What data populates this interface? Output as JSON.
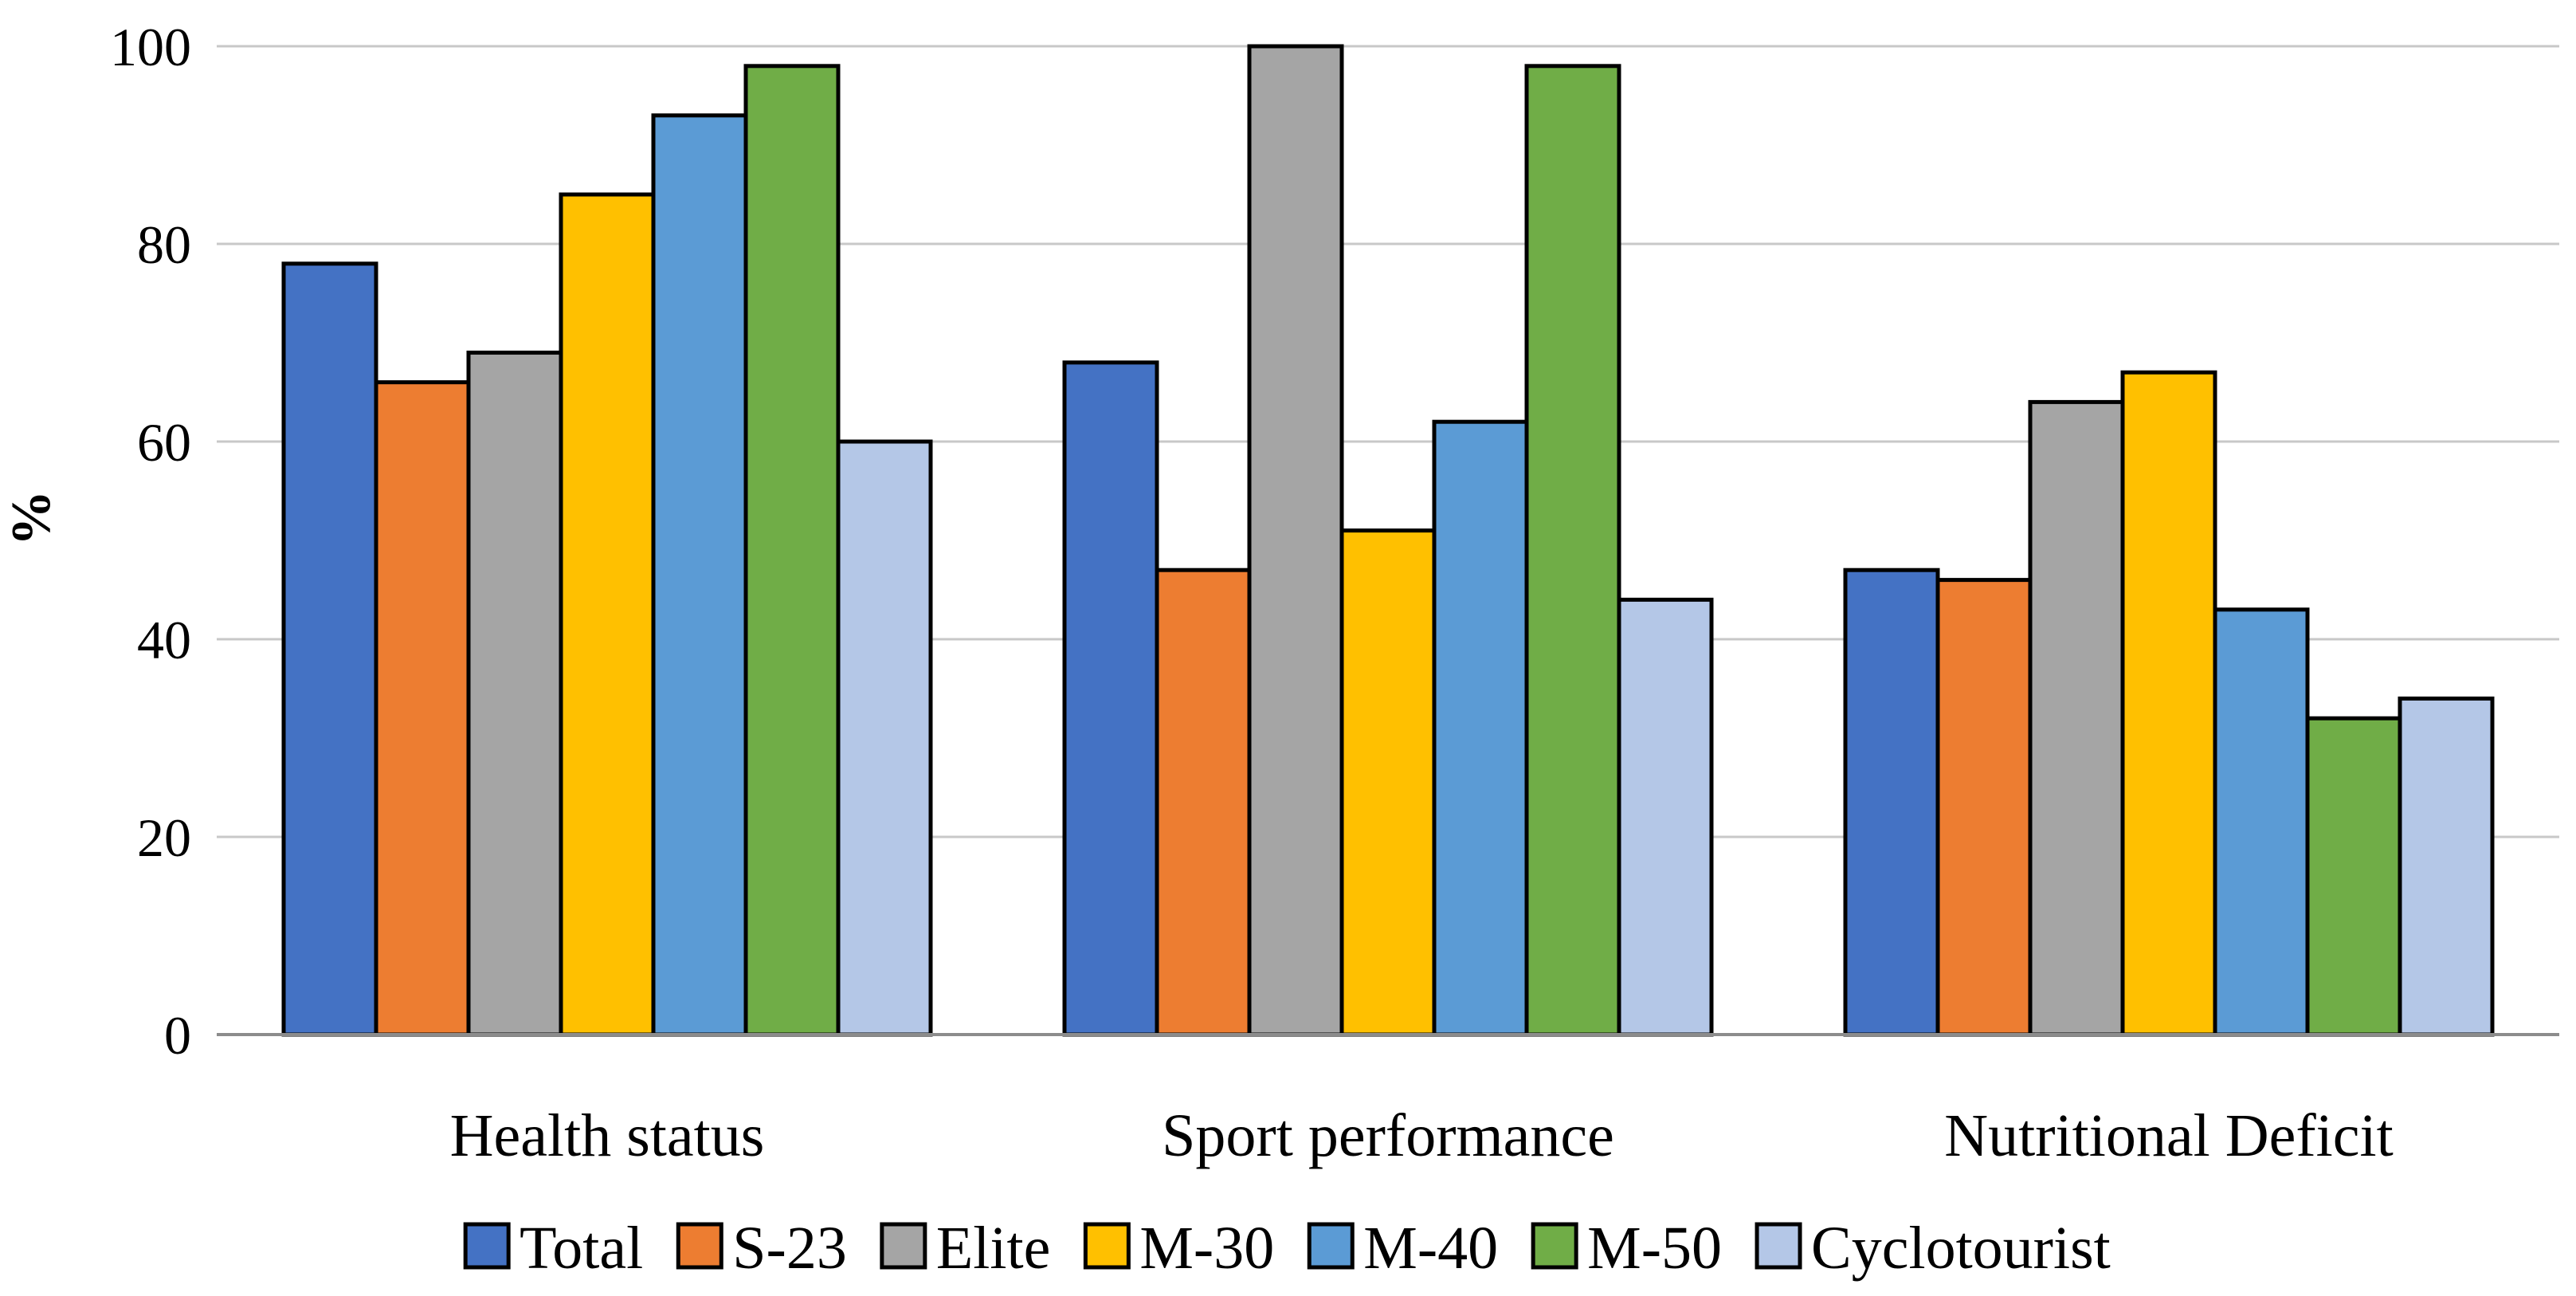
{
  "chart_data": {
    "type": "bar",
    "title": "",
    "xlabel": "",
    "ylabel": "%",
    "ylim": [
      0,
      100
    ],
    "yticks": [
      0,
      20,
      40,
      60,
      80,
      100
    ],
    "grid": true,
    "legend_position": "bottom",
    "categories": [
      "Health status",
      "Sport performance",
      "Nutritional Deficit"
    ],
    "series": [
      {
        "name": "Total",
        "color": "#4472C4",
        "values": [
          78,
          68,
          47
        ]
      },
      {
        "name": "S-23",
        "color": "#ED7D31",
        "values": [
          66,
          47,
          46
        ]
      },
      {
        "name": "Elite",
        "color": "#A5A5A5",
        "values": [
          69,
          100,
          64
        ]
      },
      {
        "name": "M-30",
        "color": "#FFC000",
        "values": [
          85,
          51,
          67
        ]
      },
      {
        "name": "M-40",
        "color": "#5B9BD5",
        "values": [
          93,
          62,
          43
        ]
      },
      {
        "name": "M-50",
        "color": "#70AD47",
        "values": [
          98,
          98,
          32
        ]
      },
      {
        "name": "Cyclotourist",
        "color": "#B4C7E7",
        "values": [
          60,
          44,
          34
        ]
      }
    ]
  }
}
